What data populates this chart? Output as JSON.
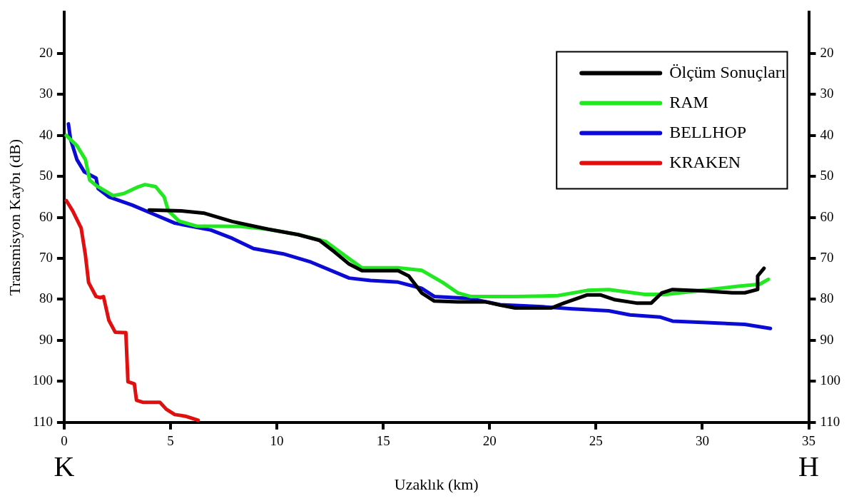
{
  "chart_data": {
    "type": "line",
    "xlabel": "Uzaklık (km)",
    "ylabel": "Transmisyon Kaybı (dB)",
    "xlim": [
      0,
      35
    ],
    "xticks": [
      0,
      5,
      10,
      15,
      20,
      25,
      30,
      35
    ],
    "ylim": [
      110,
      10
    ],
    "yticks": [
      20,
      30,
      40,
      50,
      60,
      70,
      80,
      90,
      100,
      110
    ],
    "y2lim": [
      110,
      10
    ],
    "y2ticks": [
      20,
      30,
      40,
      50,
      60,
      70,
      80,
      90,
      100,
      110
    ],
    "grid": false,
    "legend": "top right",
    "marker": "none",
    "line_style": "solid",
    "annotations": [
      "K",
      "H"
    ],
    "series": [
      {
        "name": "Ölçüm Sonuçları",
        "color": "#000000",
        "x": [
          4.0,
          5.5,
          6.6,
          7.9,
          9.6,
          11,
          12,
          12.7,
          13.4,
          14,
          15.7,
          16.2,
          16.8,
          17.4,
          18.5,
          19.8,
          20.5,
          21.2,
          22.9,
          23.5,
          24.6,
          25.2,
          25.9,
          26.9,
          27.6,
          28.1,
          28.6,
          30,
          31.4,
          32,
          32.6,
          32.6,
          32.9
        ],
        "values": [
          58.2,
          58.4,
          59,
          61,
          62.9,
          64.2,
          65.6,
          68.4,
          71.4,
          73,
          73,
          74.3,
          78.4,
          80.4,
          80.6,
          80.6,
          81.4,
          82.1,
          82.1,
          80.9,
          78.9,
          78.9,
          80.1,
          80.9,
          80.9,
          78.4,
          77.6,
          77.9,
          78.4,
          78.4,
          77.6,
          74.3,
          72.4
        ]
      },
      {
        "name": "RAM",
        "color": "#22e822",
        "x": [
          0.1,
          0.6,
          1.0,
          1.2,
          1.5,
          2.3,
          2.8,
          3.5,
          3.8,
          4.3,
          4.7,
          4.9,
          5.4,
          6.2,
          8.3,
          9.6,
          11,
          12.3,
          13.4,
          14,
          15.7,
          16.8,
          17.8,
          18.5,
          19.1,
          21.2,
          23.2,
          24.6,
          25.6,
          27.3,
          28.3,
          30.3,
          31.7,
          32.7,
          33.1
        ],
        "values": [
          40,
          42.5,
          45.9,
          50.9,
          52.2,
          54.7,
          54.2,
          52.5,
          52,
          52.5,
          55,
          58.4,
          60.9,
          62.1,
          62.2,
          62.9,
          64.2,
          65.9,
          70.1,
          72.3,
          72.3,
          72.9,
          75.9,
          78.4,
          79.3,
          79.3,
          79.1,
          77.8,
          77.6,
          78.8,
          78.8,
          77.6,
          76.8,
          76.3,
          75.1
        ]
      },
      {
        "name": "BELLHOP",
        "color": "#0b0bd4",
        "x": [
          0.2,
          0.3,
          0.6,
          0.95,
          1.5,
          1.6,
          2.1,
          3.2,
          4.2,
          5.2,
          6.9,
          7.9,
          8.9,
          10.3,
          11.6,
          13.4,
          14.4,
          15.7,
          16.8,
          17.4,
          19.1,
          20.5,
          22.5,
          23.9,
          25.6,
          26.6,
          28,
          28.6,
          30,
          32,
          33.2
        ],
        "values": [
          37.2,
          40.9,
          45.9,
          48.9,
          50.4,
          53,
          55,
          57,
          59.2,
          61.4,
          63.1,
          65.1,
          67.6,
          68.9,
          70.9,
          74.8,
          75.4,
          75.8,
          77.3,
          79.3,
          79.8,
          81.3,
          81.8,
          82.3,
          82.8,
          83.8,
          84.3,
          85.3,
          85.6,
          86.1,
          87.1
        ]
      },
      {
        "name": "KRAKEN",
        "color": "#e01010",
        "x": [
          0.1,
          0.4,
          0.8,
          1.0,
          1.15,
          1.5,
          1.7,
          1.85,
          2.1,
          2.4,
          2.75,
          2.9,
          3.0,
          3.3,
          3.4,
          3.7,
          4.5,
          4.8,
          5.2,
          5.7,
          6.3
        ],
        "values": [
          55.9,
          58.4,
          62.6,
          69.2,
          75.9,
          79.3,
          79.6,
          79.3,
          85.1,
          88,
          88.1,
          88.1,
          100.1,
          100.6,
          104.6,
          105.1,
          105.1,
          106.8,
          108.1,
          108.5,
          109.5
        ]
      }
    ]
  }
}
